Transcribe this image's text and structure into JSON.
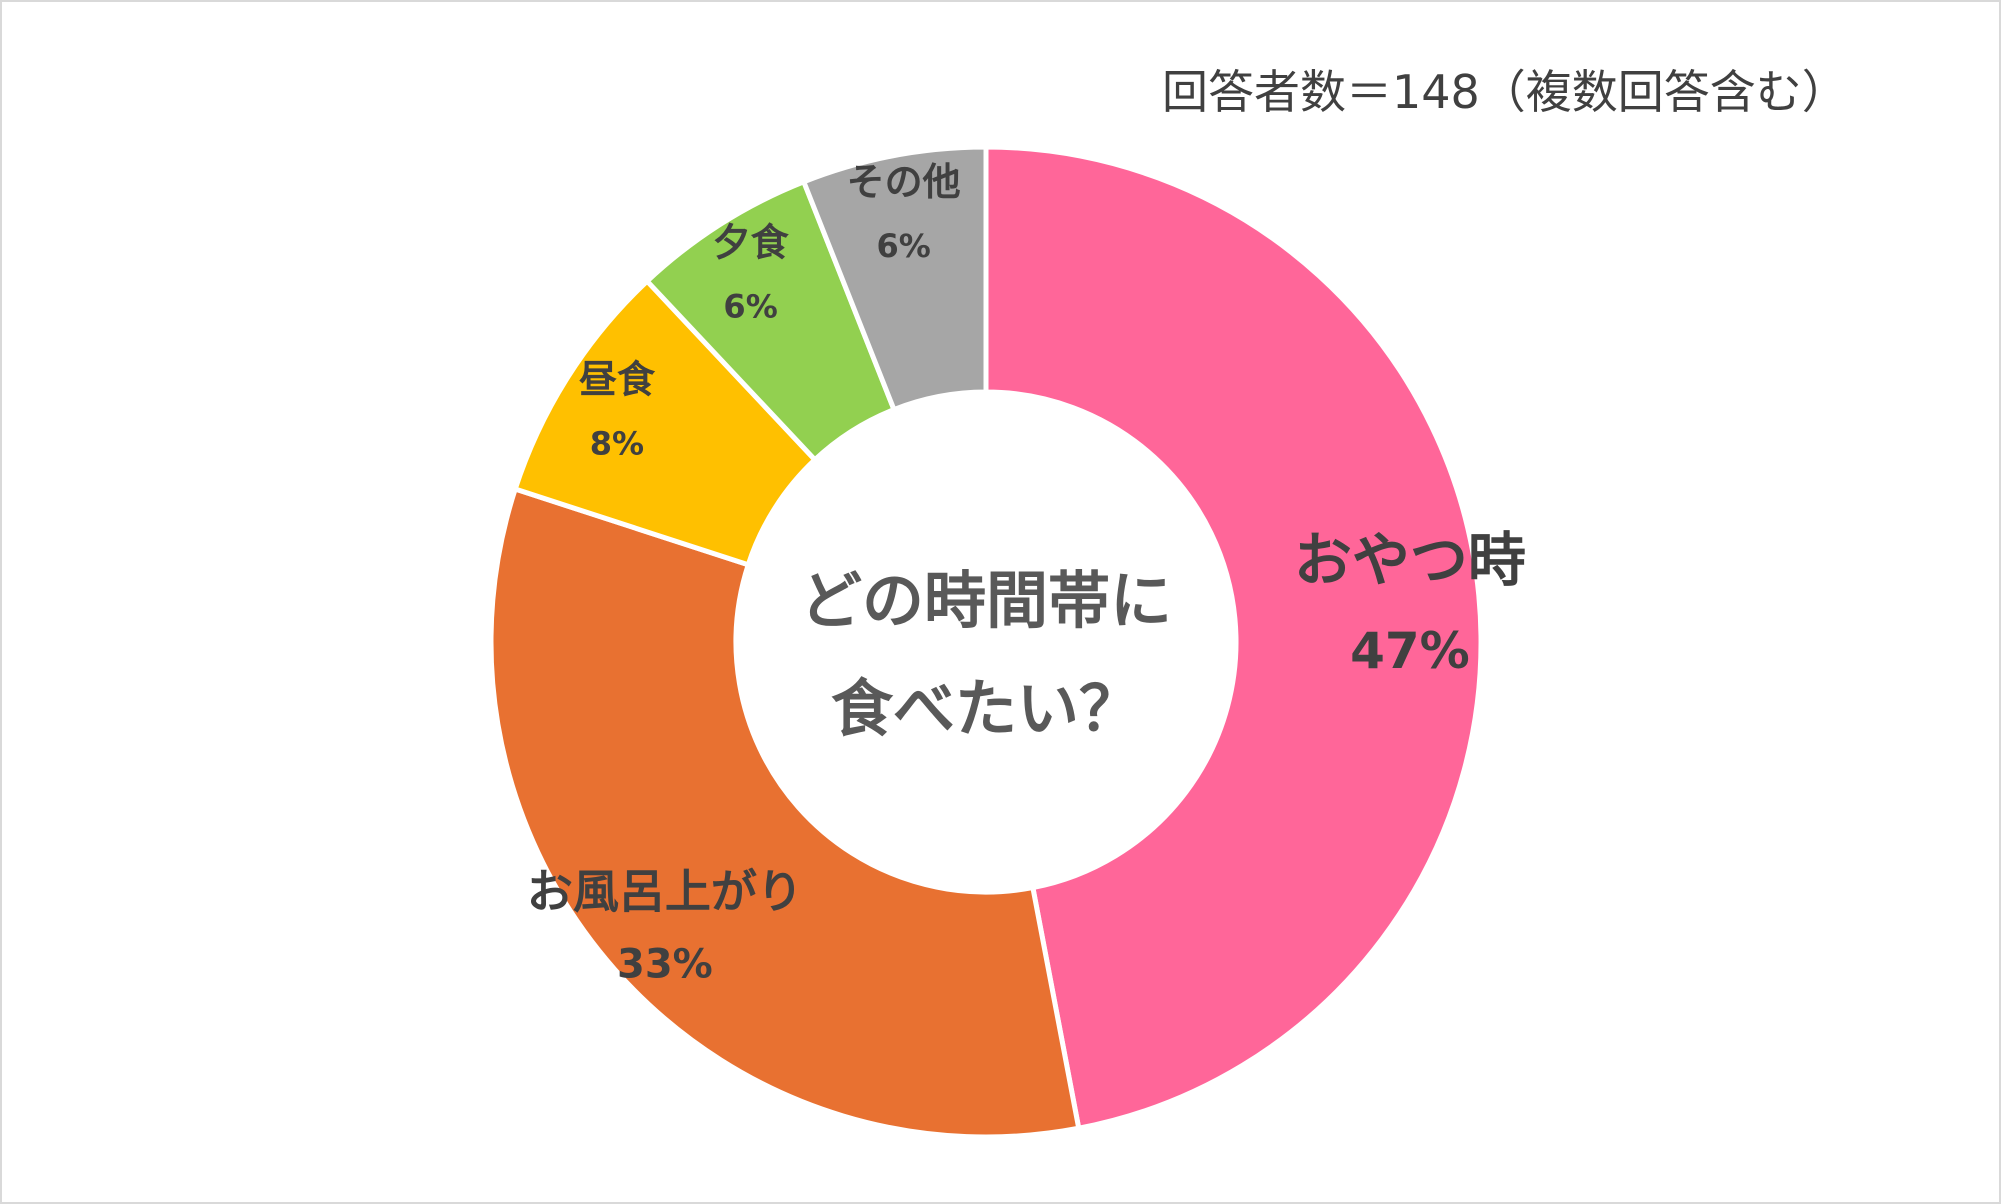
{
  "chart_data": {
    "type": "pie",
    "style": "donut",
    "title": "どの時間帯に食べたい？",
    "title_lines": [
      "どの時間帯に",
      "食べたい？"
    ],
    "note": "回答者数＝148（複数回答含む）",
    "categories": [
      "おやつ時",
      "お風呂上がり",
      "昼食",
      "夕食",
      "その他"
    ],
    "values": [
      47,
      33,
      8,
      6,
      6
    ],
    "value_labels": [
      "47%",
      "33%",
      "8%",
      "6%",
      "6%"
    ],
    "colors": [
      "#ff6699",
      "#e87131",
      "#ffc000",
      "#92d050",
      "#a6a6a6"
    ],
    "legend": "none",
    "data_labels": "inside"
  }
}
